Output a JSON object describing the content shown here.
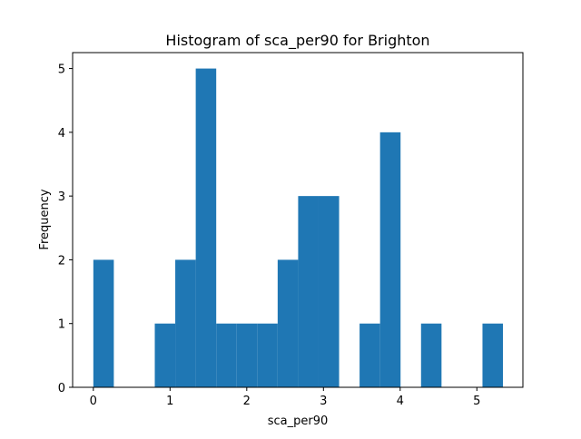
{
  "chart_data": {
    "type": "bar",
    "title": "Histogram of sca_per90 for Brighton",
    "xlabel": "sca_per90",
    "ylabel": "Frequency",
    "xlim": [
      -0.27,
      5.6
    ],
    "ylim": [
      0,
      5.25
    ],
    "xticks": [
      0,
      1,
      2,
      3,
      4,
      5
    ],
    "yticks": [
      0,
      1,
      2,
      3,
      4,
      5
    ],
    "bin_edges": [
      0,
      0.267,
      0.534,
      0.801,
      1.068,
      1.335,
      1.602,
      1.869,
      2.136,
      2.403,
      2.67,
      2.937,
      3.204,
      3.471,
      3.738,
      4.005,
      4.272,
      4.539,
      4.806,
      5.073,
      5.34
    ],
    "counts": [
      2,
      0,
      0,
      1,
      2,
      5,
      1,
      1,
      1,
      2,
      3,
      3,
      0,
      1,
      4,
      0,
      1,
      0,
      0,
      1
    ],
    "bar_color": "#1f77b4",
    "grid": false
  }
}
